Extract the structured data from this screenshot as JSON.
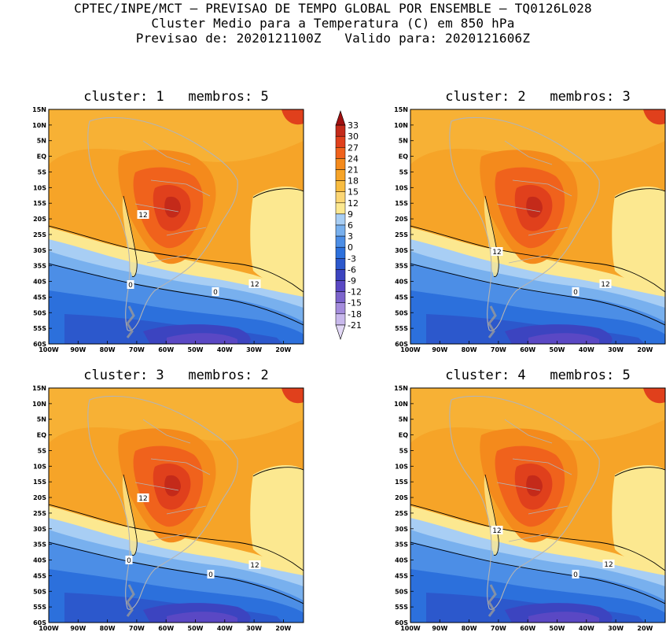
{
  "header": {
    "line1": "CPTEC/INPE/MCT – PREVISAO DE TEMPO GLOBAL POR ENSEMBLE – TQ0126L028",
    "line2": "Cluster Medio para a Temperatura (C) em 850 hPa",
    "line3": "Previsao de: 2020121100Z   Valido para: 2020121606Z"
  },
  "lat_labels": [
    "15N",
    "10N",
    "5N",
    "EQ",
    "5S",
    "10S",
    "15S",
    "20S",
    "25S",
    "30S",
    "35S",
    "40S",
    "45S",
    "50S",
    "55S",
    "60S"
  ],
  "lon_labels": [
    "100W",
    "90W",
    "80W",
    "70W",
    "60W",
    "50W",
    "40W",
    "30W",
    "20W"
  ],
  "colorbar": {
    "labels": [
      "33",
      "30",
      "27",
      "24",
      "21",
      "18",
      "15",
      "12",
      "9",
      "6",
      "3",
      "0",
      "-3",
      "-6",
      "-9",
      "-12",
      "-15",
      "-18",
      "-21"
    ],
    "colors": [
      "#a01010",
      "#c42a1a",
      "#e0401c",
      "#f0621c",
      "#f48a1c",
      "#f6a428",
      "#f8bc40",
      "#fcd674",
      "#fce890",
      "#a8cef4",
      "#78b0ee",
      "#4c8ee6",
      "#2c70dc",
      "#2c58cc",
      "#3c44c0",
      "#5a48c4",
      "#7c64cc",
      "#a48cdc",
      "#c8b8ec",
      "#e2d8f6"
    ]
  },
  "panels": [
    {
      "title": "cluster: 1   membros: 5",
      "contour_labels": [
        "12",
        "0",
        "0",
        "12"
      ]
    },
    {
      "title": "cluster: 2   membros: 3",
      "contour_labels": [
        "12",
        "0",
        "12"
      ]
    },
    {
      "title": "cluster: 3   membros: 2",
      "contour_labels": [
        "12",
        "0",
        "0",
        "12"
      ]
    },
    {
      "title": "cluster: 4   membros: 5",
      "contour_labels": [
        "12",
        "0",
        "12"
      ]
    }
  ]
}
